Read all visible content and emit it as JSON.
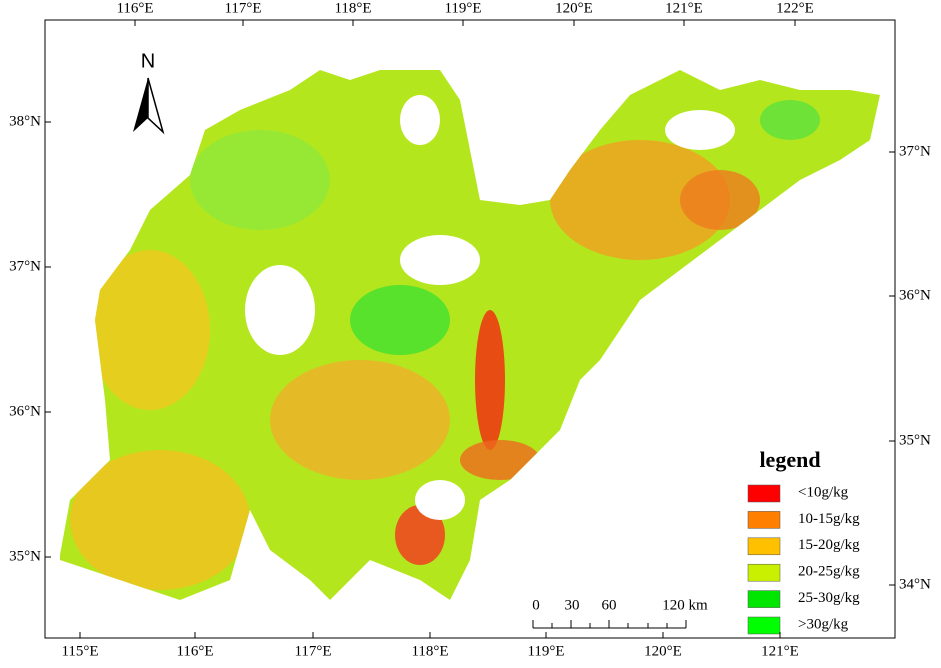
{
  "map": {
    "north_label": "N",
    "axes": {
      "top": [
        "116°E",
        "117°E",
        "118°E",
        "119°E",
        "120°E",
        "121°E",
        "122°E"
      ],
      "bottom": [
        "115°E",
        "116°E",
        "117°E",
        "118°E",
        "119°E",
        "120°E",
        "121°E"
      ],
      "left": [
        "38°N",
        "37°N",
        "36°N",
        "35°N"
      ],
      "right": [
        "37°N",
        "36°N",
        "35°N",
        "34°N"
      ]
    },
    "legend": {
      "title": "legend",
      "items": [
        {
          "label": "<10g/kg",
          "color": "#ff0000"
        },
        {
          "label": "10-15g/kg",
          "color": "#ff7f00"
        },
        {
          "label": "15-20g/kg",
          "color": "#ffc000"
        },
        {
          "label": "20-25g/kg",
          "color": "#c8f000"
        },
        {
          "label": "25-30g/kg",
          "color": "#00e600"
        },
        {
          "label": ">30g/kg",
          "color": "#00ff00"
        }
      ]
    },
    "scale_bar": [
      "0",
      "30",
      "60",
      "120 km"
    ]
  }
}
